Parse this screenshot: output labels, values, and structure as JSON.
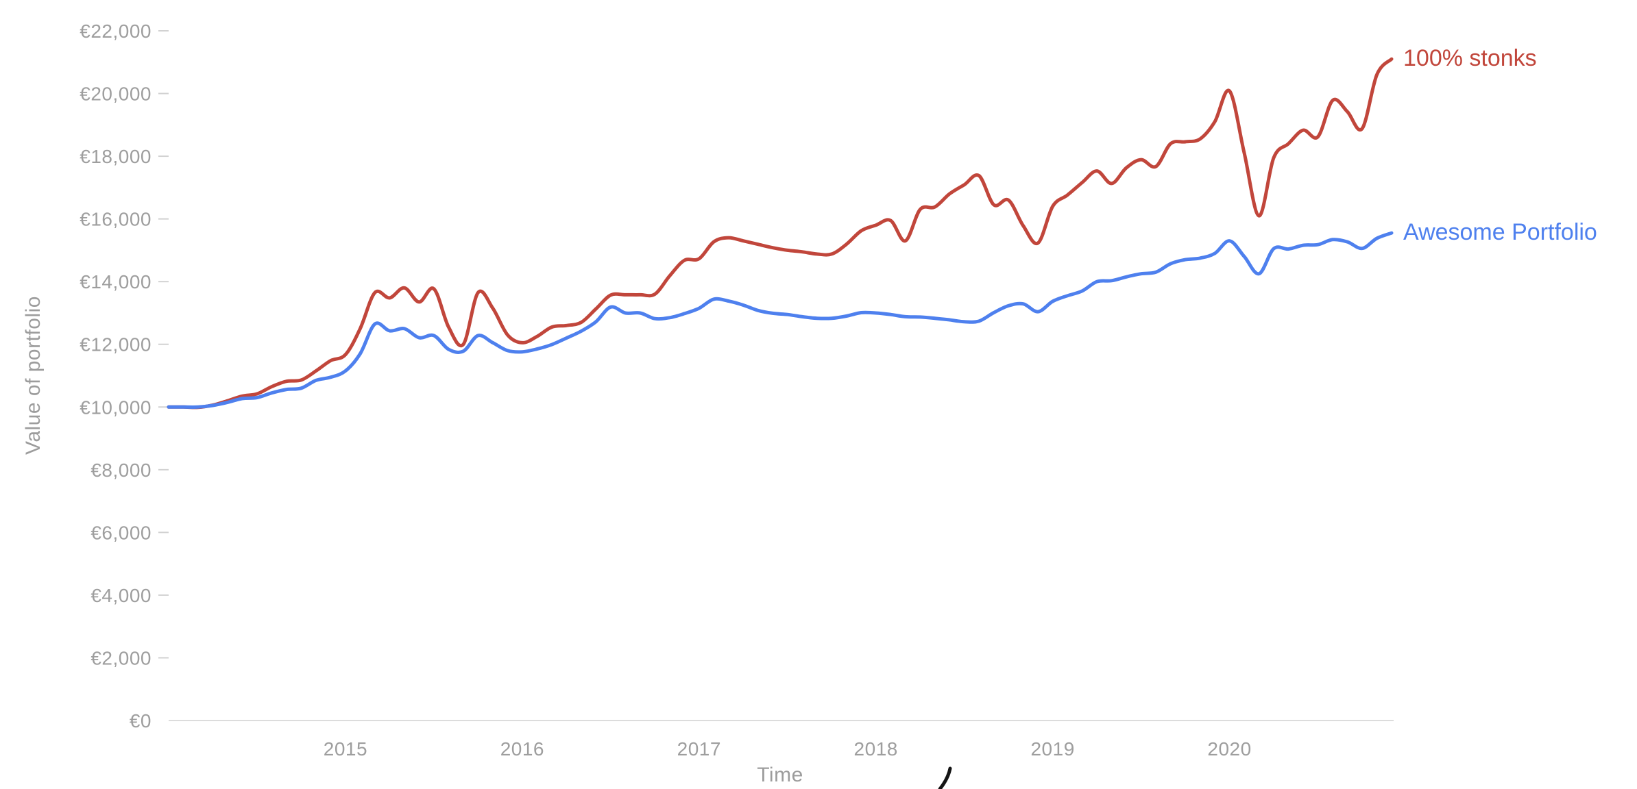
{
  "chart_data": {
    "type": "line",
    "title": "",
    "xlabel": "Time",
    "ylabel": "Value of portfolio",
    "x_start": "2014-01",
    "x_end": "2020-12",
    "frequency": "monthly",
    "x_tick_labels": [
      "2015",
      "2016",
      "2017",
      "2018",
      "2019",
      "2020"
    ],
    "y_ticks": [
      {
        "value": 0,
        "label": "€0"
      },
      {
        "value": 2000,
        "label": "€2,000"
      },
      {
        "value": 4000,
        "label": "€4,000"
      },
      {
        "value": 6000,
        "label": "€6,000"
      },
      {
        "value": 8000,
        "label": "€8,000"
      },
      {
        "value": 10000,
        "label": "€10,000"
      },
      {
        "value": 12000,
        "label": "€12,000"
      },
      {
        "value": 14000,
        "label": "€14,000"
      },
      {
        "value": 16000,
        "label": "€16,000"
      },
      {
        "value": 18000,
        "label": "€18,000"
      },
      {
        "value": 20000,
        "label": "€20,000"
      },
      {
        "value": 22000,
        "label": "€22,000"
      }
    ],
    "ylim": [
      0,
      22000
    ],
    "grid": "none",
    "legend_position": "right-of-line-ends",
    "series": [
      {
        "name": "100% stonks",
        "color": "#c1463b",
        "values": [
          10000,
          10000,
          9990,
          10060,
          10200,
          10350,
          10420,
          10650,
          10820,
          10860,
          11150,
          11480,
          11670,
          12500,
          13650,
          13480,
          13800,
          13350,
          13770,
          12550,
          12000,
          13650,
          13150,
          12300,
          12050,
          12250,
          12550,
          12600,
          12700,
          13130,
          13570,
          13580,
          13580,
          13600,
          14180,
          14680,
          14730,
          15270,
          15400,
          15300,
          15190,
          15080,
          15000,
          14950,
          14880,
          14880,
          15190,
          15620,
          15800,
          15950,
          15300,
          16300,
          16380,
          16800,
          17090,
          17380,
          16450,
          16600,
          15780,
          15230,
          16400,
          16760,
          17160,
          17530,
          17130,
          17630,
          17890,
          17670,
          18400,
          18460,
          18550,
          19100,
          20080,
          18100,
          16100,
          17950,
          18400,
          18830,
          18620,
          19780,
          19420,
          18880,
          20600,
          21100
        ]
      },
      {
        "name": "Awesome Portfolio",
        "color": "#4e80ee",
        "values": [
          10000,
          10000,
          10000,
          10050,
          10150,
          10270,
          10300,
          10450,
          10560,
          10600,
          10850,
          10950,
          11150,
          11700,
          12650,
          12430,
          12500,
          12210,
          12280,
          11840,
          11780,
          12280,
          12050,
          11800,
          11760,
          11850,
          11990,
          12200,
          12420,
          12720,
          13190,
          13000,
          13000,
          12820,
          12850,
          12980,
          13150,
          13440,
          13380,
          13250,
          13080,
          12990,
          12950,
          12880,
          12830,
          12830,
          12900,
          13010,
          13000,
          12950,
          12880,
          12870,
          12830,
          12780,
          12720,
          12740,
          13010,
          13230,
          13290,
          13040,
          13370,
          13550,
          13700,
          14000,
          14030,
          14150,
          14250,
          14300,
          14570,
          14700,
          14750,
          14900,
          15300,
          14800,
          14250,
          15050,
          15040,
          15160,
          15180,
          15340,
          15270,
          15060,
          15380,
          15550
        ]
      }
    ],
    "style": {
      "axis_line_color": "#dcdcdc",
      "tick_dash_color": "#d2d2d2",
      "axis_text_color": "#9e9e9e",
      "background": "#ffffff",
      "line_width": 5
    },
    "artifacts": {
      "pen_mark": "small black handwritten stroke at bottom edge, right of the Time label"
    }
  }
}
